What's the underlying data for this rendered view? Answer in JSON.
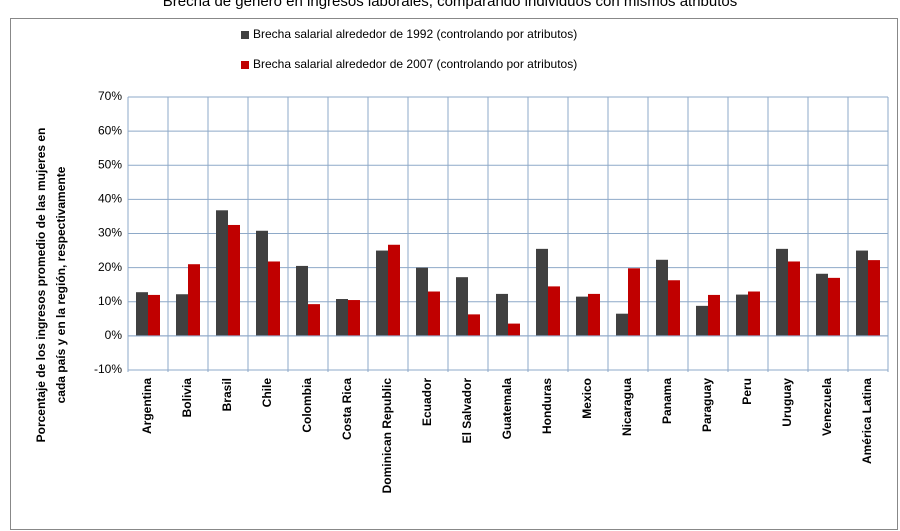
{
  "chart_data": {
    "type": "bar",
    "title": "Brecha de género en ingresos laborales, comparando individuos con mismos atributos",
    "y_label": [
      "Porcentaje de los ingresos promedio de las mujeres en",
      "cada país y en la región, respectivamente"
    ],
    "categories": [
      "Argentina",
      "Bolivia",
      "Brasil",
      "Chile",
      "Colombia",
      "Costa Rica",
      "Dominican Republic",
      "Ecuador",
      "El Salvador",
      "Guatemala",
      "Honduras",
      "Mexico",
      "Nicaragua",
      "Panama",
      "Paraguay",
      "Peru",
      "Uruguay",
      "Venezuela",
      "América Latina"
    ],
    "series": [
      {
        "name": "Brecha salarial alrededor de 1992 (controlando por atributos)",
        "color": "#404040",
        "values": [
          12.8,
          12.2,
          36.8,
          30.8,
          20.5,
          10.8,
          25.0,
          20.0,
          17.2,
          12.3,
          25.5,
          11.5,
          6.5,
          22.3,
          8.8,
          12.1,
          25.5,
          18.2,
          25.0
        ]
      },
      {
        "name": "Brecha salarial alrededor de 2007 (controlando por atributos)",
        "color": "#c00000",
        "values": [
          12.0,
          21.0,
          32.5,
          21.8,
          9.3,
          10.5,
          26.7,
          13.0,
          6.3,
          3.6,
          14.5,
          12.3,
          19.8,
          16.3,
          12.0,
          13.0,
          21.8,
          17.0,
          22.2
        ]
      }
    ],
    "ylim": [
      -10,
      70
    ],
    "yticks": [
      {
        "value": -10,
        "label": "-10%"
      },
      {
        "value": 0,
        "label": "0%"
      },
      {
        "value": 10,
        "label": "10%"
      },
      {
        "value": 20,
        "label": "20%"
      },
      {
        "value": 30,
        "label": "30%"
      },
      {
        "value": 40,
        "label": "40%"
      },
      {
        "value": 50,
        "label": "50%"
      },
      {
        "value": 60,
        "label": "60%"
      },
      {
        "value": 70,
        "label": "70%"
      }
    ],
    "grid": true
  }
}
